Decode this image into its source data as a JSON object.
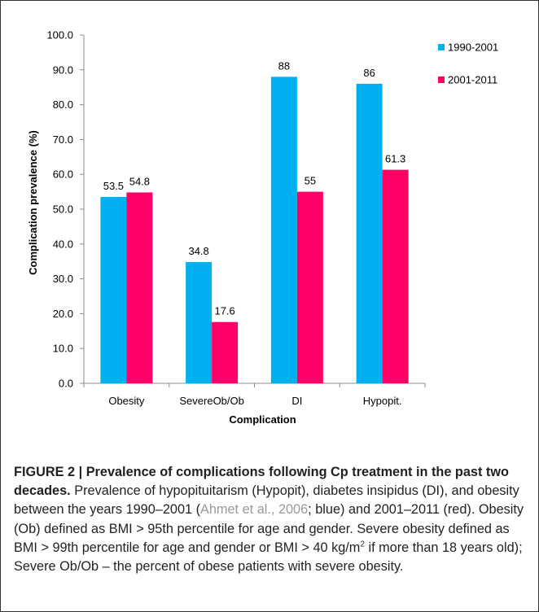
{
  "chart_data": {
    "type": "bar",
    "categories": [
      "Obesity",
      "SevereOb/Ob",
      "DI",
      "Hypopit."
    ],
    "series": [
      {
        "name": "1990-2001",
        "values": [
          53.5,
          34.8,
          88,
          86
        ],
        "labels": [
          "53.5",
          "34.8",
          "88",
          "86"
        ],
        "color": "#00b0f0"
      },
      {
        "name": "2001-2011",
        "values": [
          54.8,
          17.6,
          55,
          61.3
        ],
        "labels": [
          "54.8",
          "17.6",
          "55",
          "61.3"
        ],
        "color": "#ff0066"
      }
    ],
    "xlabel": "Complication",
    "ylabel": "Complication prevalence (%)",
    "ylim": [
      0,
      100
    ],
    "yticks": [
      "0.0",
      "10.0",
      "20.0",
      "30.0",
      "40.0",
      "50.0",
      "60.0",
      "70.0",
      "80.0",
      "90.0",
      "100.0"
    ],
    "grid": false,
    "legend": "top-right"
  },
  "caption": {
    "figure_label": "FIGURE 2 | Prevalence of complications following Cp treatment in the past two decades.",
    "text_1": " Prevalence of hypopituitarism (Hypopit), diabetes insipidus (DI), and obesity between the years 1990–2001 (",
    "ref": "Ahmet et al., 2006",
    "text_2": "; blue) and 2001–2011 (red). Obesity (Ob) defined as BMI > 95th percentile for age and gender. Severe obesity defined as BMI > 99th percentile for age and gender or BMI > 40 kg/m",
    "sup": "2",
    "text_3": " if more than 18 years old); Severe Ob/Ob – the percent of obese patients with severe obesity."
  }
}
